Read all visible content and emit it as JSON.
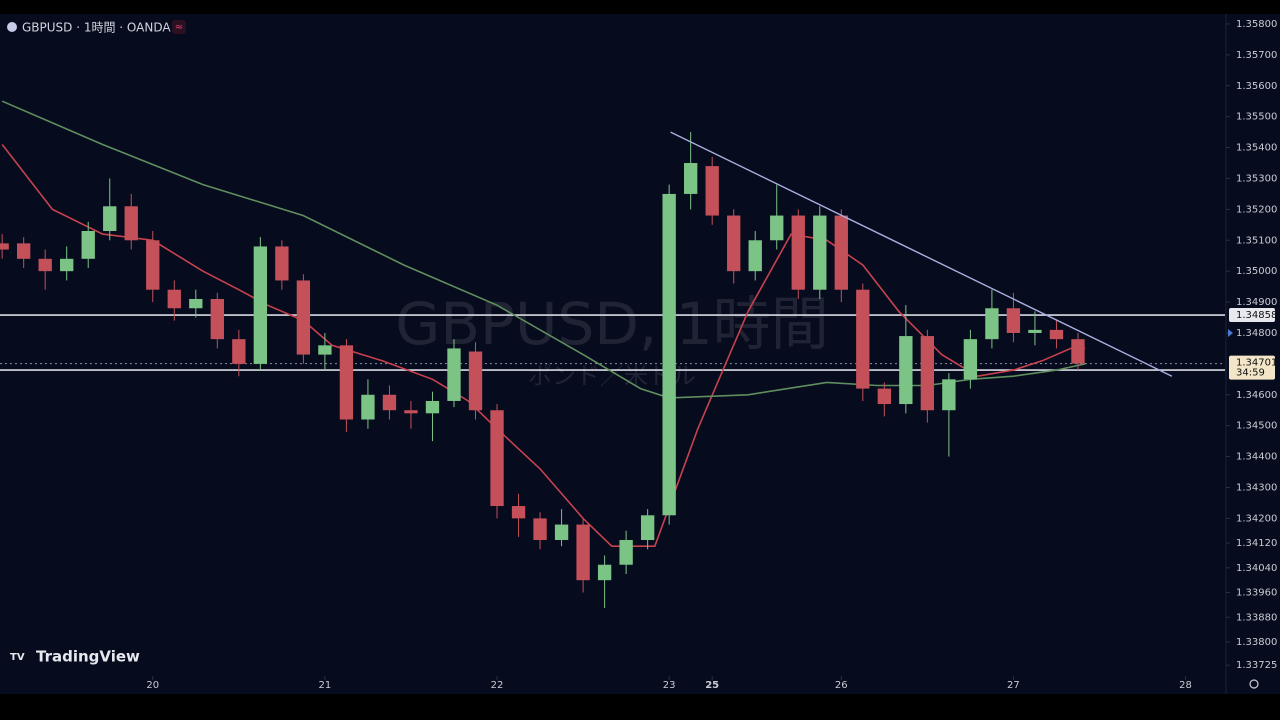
{
  "chart_data": {
    "type": "candlestick",
    "title": "GBPUSD · 1時間 · OANDA",
    "watermark": "GBPUSD, 1時間",
    "watermark_sub": "ポンド／米ドル",
    "brand": "TradingView",
    "up_color": "#7cc486",
    "down_color": "#c4505a",
    "xlim": [
      -21.3,
      149.5
    ],
    "ylim": [
      1.33677,
      1.35829
    ],
    "xticks": [
      {
        "value": 0,
        "label": "20"
      },
      {
        "value": 24,
        "label": "21"
      },
      {
        "value": 48,
        "label": "22"
      },
      {
        "value": 72,
        "label": "23"
      },
      {
        "value": 78,
        "label": "25"
      },
      {
        "value": 96,
        "label": "26"
      },
      {
        "value": 120,
        "label": "27"
      },
      {
        "value": 144,
        "label": "28"
      }
    ],
    "yticks": [
      {
        "value": 1.358,
        "label": "1.35800"
      },
      {
        "value": 1.357,
        "label": "1.35700"
      },
      {
        "value": 1.356,
        "label": "1.35600"
      },
      {
        "value": 1.355,
        "label": "1.35500"
      },
      {
        "value": 1.354,
        "label": "1.35400"
      },
      {
        "value": 1.353,
        "label": "1.35300"
      },
      {
        "value": 1.352,
        "label": "1.35200"
      },
      {
        "value": 1.351,
        "label": "1.35100"
      },
      {
        "value": 1.35,
        "label": "1.35000"
      },
      {
        "value": 1.349,
        "label": "1.34900"
      },
      {
        "value": 1.348,
        "label": "1.34800"
      },
      {
        "value": 1.346,
        "label": "1.34600"
      },
      {
        "value": 1.345,
        "label": "1.34500"
      },
      {
        "value": 1.344,
        "label": "1.34400"
      },
      {
        "value": 1.343,
        "label": "1.34300"
      },
      {
        "value": 1.342,
        "label": "1.34200"
      },
      {
        "value": 1.3412,
        "label": "1.34120"
      },
      {
        "value": 1.3404,
        "label": "1.34040"
      },
      {
        "value": 1.3396,
        "label": "1.33960"
      },
      {
        "value": 1.3388,
        "label": "1.33880"
      },
      {
        "value": 1.338,
        "label": "1.33800"
      },
      {
        "value": 1.33725,
        "label": "1.33725"
      }
    ],
    "x": [
      -21,
      -18,
      -15,
      -12,
      -9,
      -6,
      -3,
      0,
      3,
      6,
      9,
      12,
      15,
      18,
      21,
      24,
      27,
      30,
      33,
      36,
      39,
      42,
      45,
      48,
      51,
      54,
      57,
      60,
      63,
      66,
      69,
      72,
      75,
      78,
      81,
      84,
      87,
      90,
      93,
      96,
      99,
      102,
      105,
      108,
      111,
      114,
      117,
      120,
      123,
      126,
      129
    ],
    "open": [
      1.3509,
      1.3509,
      1.3504,
      1.35,
      1.3504,
      1.3513,
      1.3521,
      1.351,
      1.3494,
      1.3488,
      1.3491,
      1.3478,
      1.347,
      1.3508,
      1.3497,
      1.3473,
      1.3476,
      1.3452,
      1.346,
      1.3455,
      1.3454,
      1.3458,
      1.3474,
      1.3455,
      1.3424,
      1.342,
      1.3413,
      1.3418,
      1.34,
      1.3405,
      1.3413,
      1.3421,
      1.3525,
      1.3534,
      1.3518,
      1.35,
      1.351,
      1.3518,
      1.3494,
      1.3518,
      1.3494,
      1.3462,
      1.3457,
      1.3479,
      1.3455,
      1.3465,
      1.3478,
      1.3488,
      1.348,
      1.3481,
      1.3478
    ],
    "high": [
      1.3512,
      1.3511,
      1.3507,
      1.3508,
      1.3516,
      1.353,
      1.3525,
      1.3513,
      1.3497,
      1.3494,
      1.3493,
      1.3481,
      1.3511,
      1.351,
      1.3499,
      1.348,
      1.3478,
      1.3465,
      1.3463,
      1.3458,
      1.3461,
      1.3478,
      1.3477,
      1.3457,
      1.3428,
      1.3422,
      1.3423,
      1.342,
      1.3408,
      1.3416,
      1.3423,
      1.3528,
      1.3545,
      1.3537,
      1.352,
      1.3513,
      1.3528,
      1.352,
      1.3521,
      1.352,
      1.3496,
      1.3464,
      1.3489,
      1.3481,
      1.3467,
      1.3481,
      1.3494,
      1.3493,
      1.3487,
      1.3484,
      1.348
    ],
    "low": [
      1.3504,
      1.3501,
      1.3494,
      1.3497,
      1.3501,
      1.351,
      1.3507,
      1.349,
      1.3484,
      1.3485,
      1.3475,
      1.3466,
      1.3468,
      1.3494,
      1.347,
      1.3468,
      1.3448,
      1.3449,
      1.3452,
      1.3449,
      1.3445,
      1.3456,
      1.3452,
      1.342,
      1.3414,
      1.341,
      1.3411,
      1.3396,
      1.3391,
      1.3402,
      1.341,
      1.3418,
      1.352,
      1.3515,
      1.3496,
      1.3497,
      1.3507,
      1.3491,
      1.3491,
      1.349,
      1.3458,
      1.3453,
      1.3454,
      1.3451,
      1.344,
      1.3462,
      1.3475,
      1.3477,
      1.3476,
      1.3475,
      1.3468
    ],
    "close": [
      1.3507,
      1.3504,
      1.35,
      1.3504,
      1.3513,
      1.3521,
      1.351,
      1.3494,
      1.3488,
      1.3491,
      1.3478,
      1.347,
      1.3508,
      1.3497,
      1.3473,
      1.3476,
      1.3452,
      1.346,
      1.3455,
      1.3454,
      1.3458,
      1.3475,
      1.3455,
      1.3424,
      1.342,
      1.3413,
      1.3418,
      1.34,
      1.3405,
      1.3413,
      1.3421,
      1.3525,
      1.3535,
      1.3518,
      1.35,
      1.351,
      1.3518,
      1.3494,
      1.3518,
      1.3494,
      1.3462,
      1.3457,
      1.3479,
      1.3455,
      1.3465,
      1.3478,
      1.3488,
      1.348,
      1.3481,
      1.3478,
      1.34701
    ],
    "lines": [
      {
        "color": "#c8424e",
        "x": [
          -21,
          -14,
          -7,
          0,
          7,
          12,
          16,
          21,
          25,
          32,
          39,
          44,
          48,
          54,
          60,
          64,
          70,
          76,
          83,
          89,
          94,
          99,
          104,
          110,
          115,
          120,
          124,
          128,
          130
        ],
        "values": [
          1.3541,
          1.352,
          1.3512,
          1.351,
          1.35,
          1.3494,
          1.3489,
          1.3484,
          1.3476,
          1.3471,
          1.3465,
          1.3458,
          1.3449,
          1.3436,
          1.342,
          1.3411,
          1.3411,
          1.3449,
          1.3487,
          1.3512,
          1.351,
          1.3502,
          1.3487,
          1.3473,
          1.3466,
          1.3468,
          1.3471,
          1.3475,
          1.3475
        ]
      },
      {
        "color": "#5f8f5f",
        "x": [
          -21,
          -7,
          7,
          21,
          35,
          48,
          60,
          68,
          72,
          83,
          94,
          101,
          108,
          114,
          120,
          126,
          130
        ],
        "values": [
          1.3555,
          1.3541,
          1.3528,
          1.3518,
          1.3502,
          1.3489,
          1.3473,
          1.3462,
          1.3459,
          1.346,
          1.3464,
          1.3463,
          1.3463,
          1.3465,
          1.3466,
          1.3468,
          1.347
        ]
      }
    ],
    "trendline": {
      "color": "#aab0e0",
      "x": [
        72.2,
        142.1
      ],
      "values": [
        1.3545,
        1.3466
      ]
    },
    "levels": [
      1.34858,
      1.3468
    ],
    "last_price": 1.34701,
    "countdown": "34:59"
  }
}
